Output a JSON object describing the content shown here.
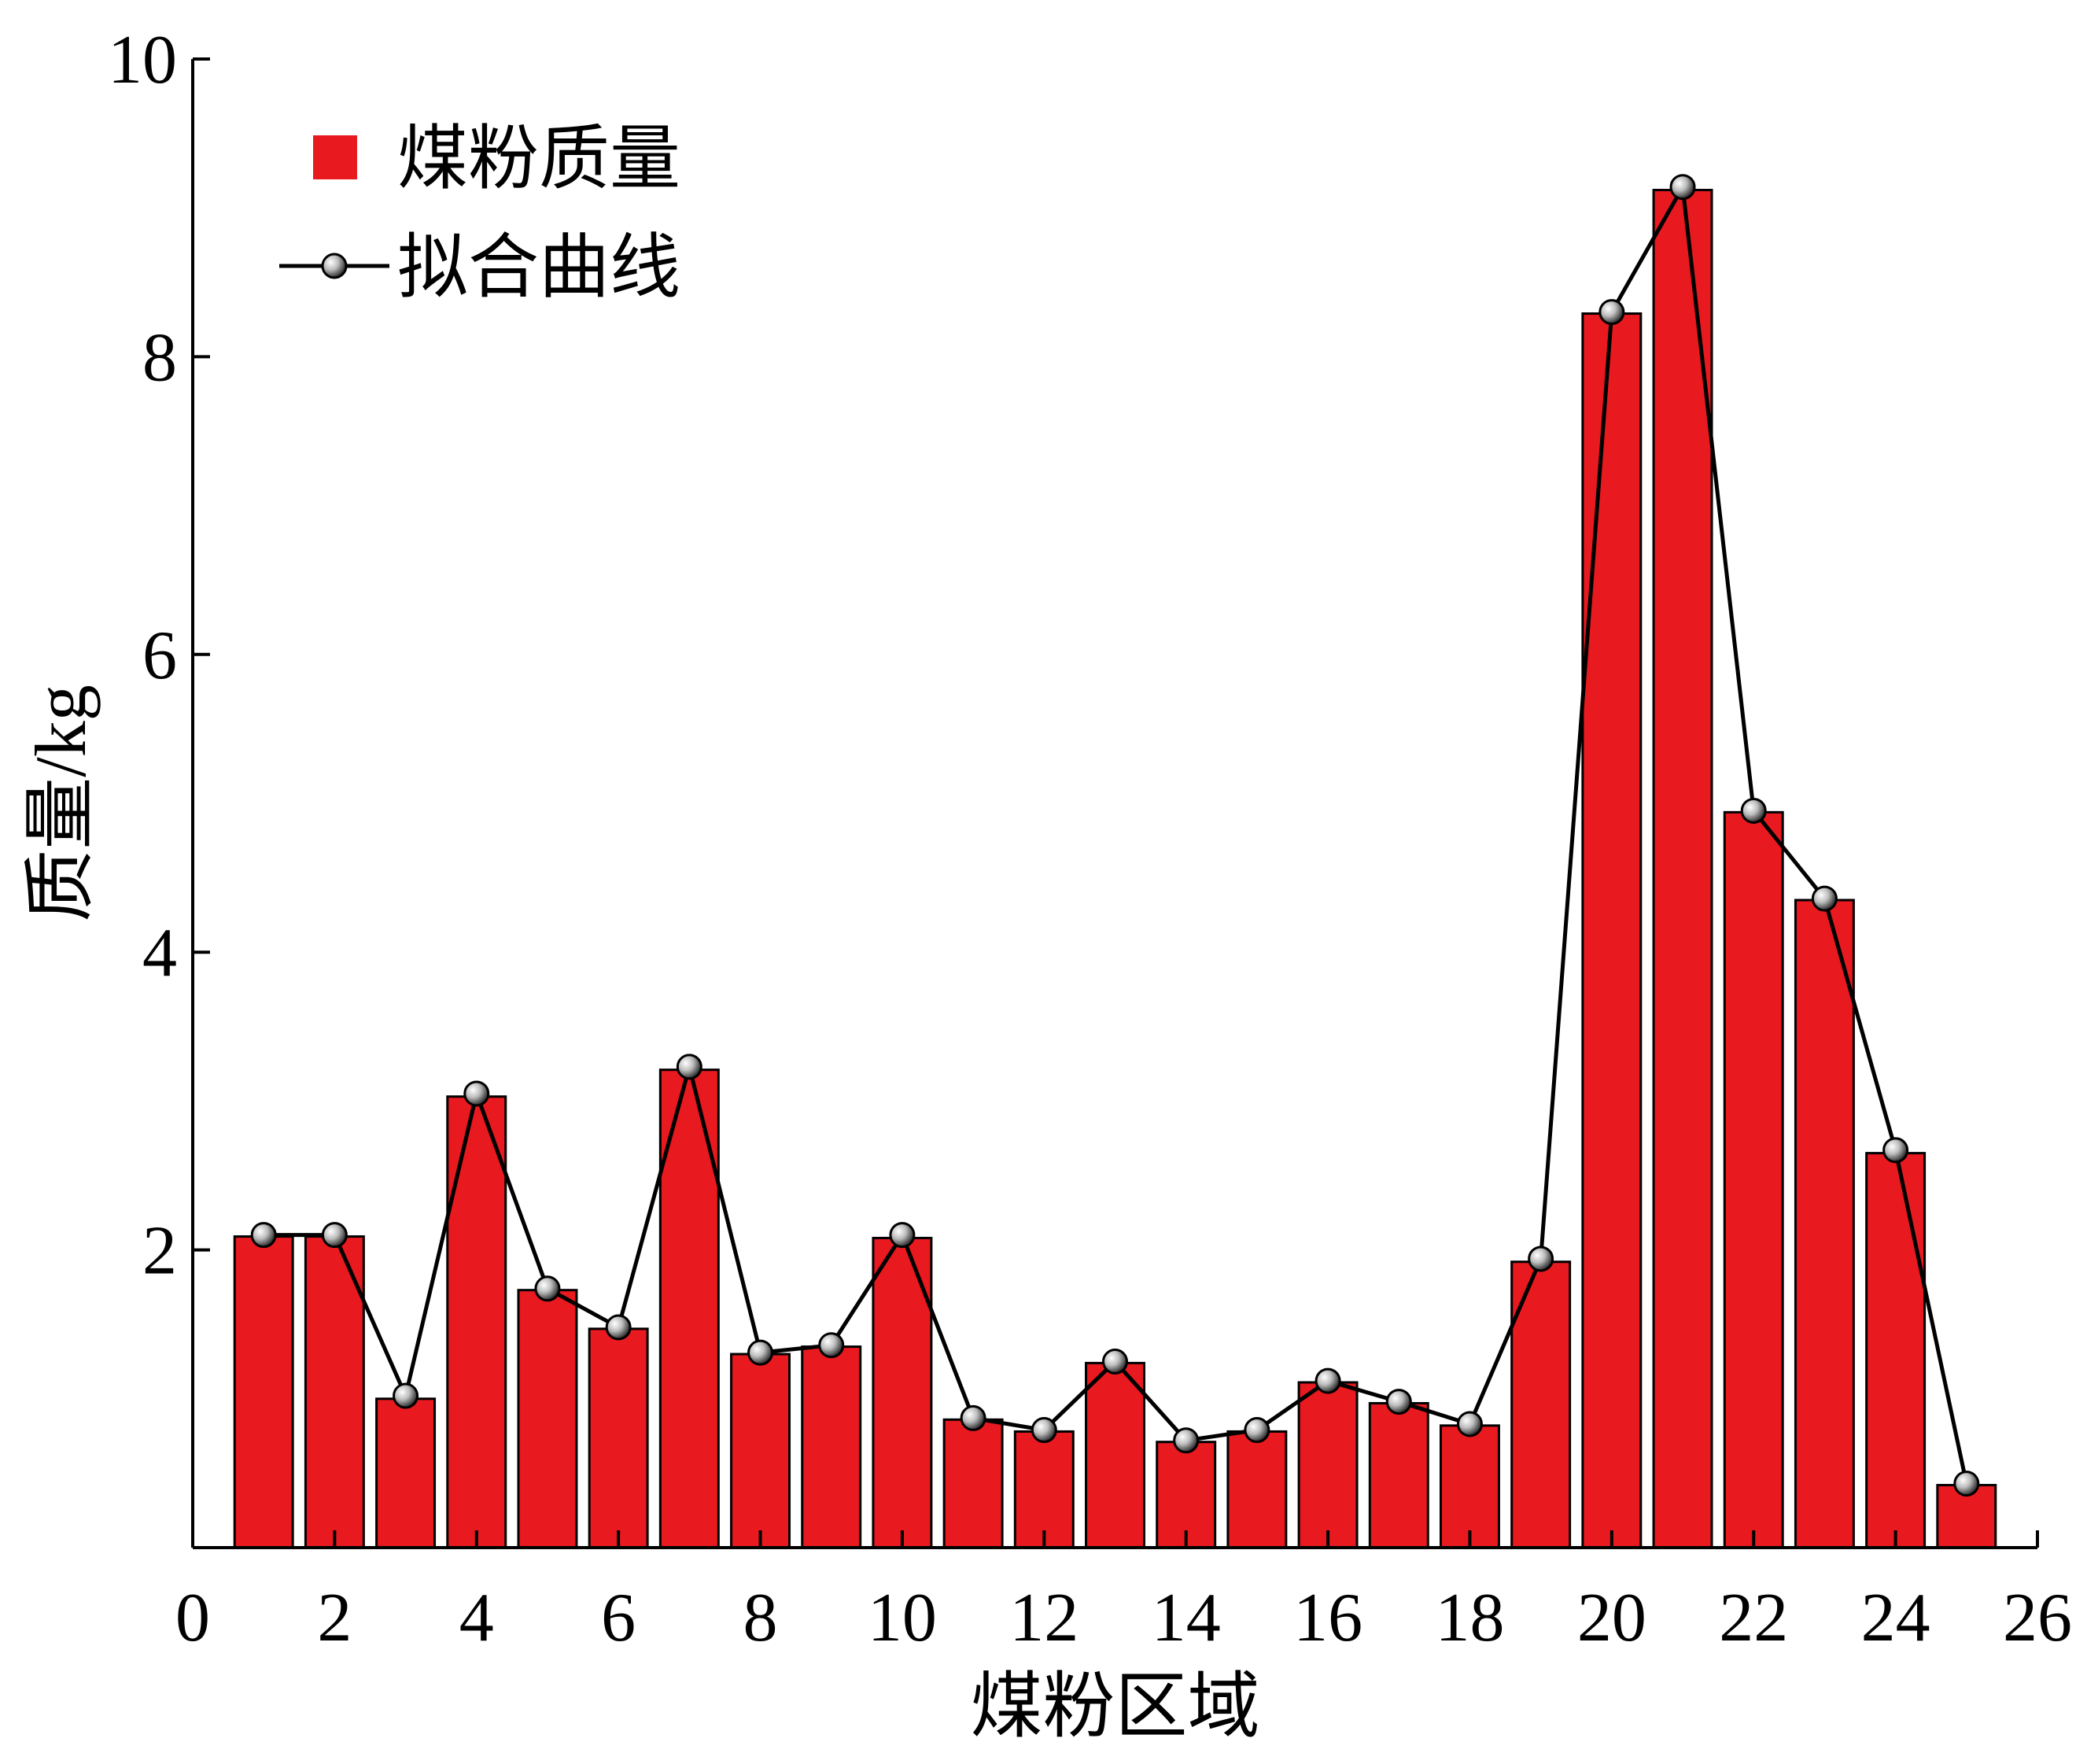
{
  "chart_data": {
    "type": "bar",
    "xlabel": "煤粉区域",
    "ylabel": "质量/kg",
    "xlim": [
      0,
      26
    ],
    "ylim": [
      0,
      10
    ],
    "xticks": [
      0,
      2,
      4,
      6,
      8,
      10,
      12,
      14,
      16,
      18,
      20,
      22,
      24,
      26
    ],
    "yticks": [
      2,
      4,
      6,
      8,
      10
    ],
    "legend_position": "top-left",
    "x": [
      1,
      2,
      3,
      4,
      5,
      6,
      7,
      8,
      9,
      10,
      11,
      12,
      13,
      14,
      15,
      16,
      17,
      18,
      19,
      20,
      21,
      22,
      23,
      24,
      25
    ],
    "series": [
      {
        "name": "煤粉质量",
        "type": "bar",
        "color": "#e8191f",
        "values": [
          2.09,
          2.09,
          1.0,
          3.03,
          1.73,
          1.47,
          3.21,
          1.3,
          1.35,
          2.08,
          0.86,
          0.78,
          1.24,
          0.71,
          0.78,
          1.11,
          0.97,
          0.82,
          1.92,
          8.29,
          9.12,
          4.94,
          4.35,
          2.65,
          0.42
        ]
      },
      {
        "name": "拟合曲线",
        "type": "line",
        "color": "#000000",
        "marker": "sphere",
        "values": [
          2.1,
          2.1,
          1.02,
          3.05,
          1.74,
          1.48,
          3.23,
          1.31,
          1.36,
          2.1,
          0.87,
          0.79,
          1.25,
          0.72,
          0.79,
          1.12,
          0.98,
          0.83,
          1.94,
          8.3,
          9.14,
          4.95,
          4.36,
          2.67,
          0.43
        ]
      }
    ]
  }
}
